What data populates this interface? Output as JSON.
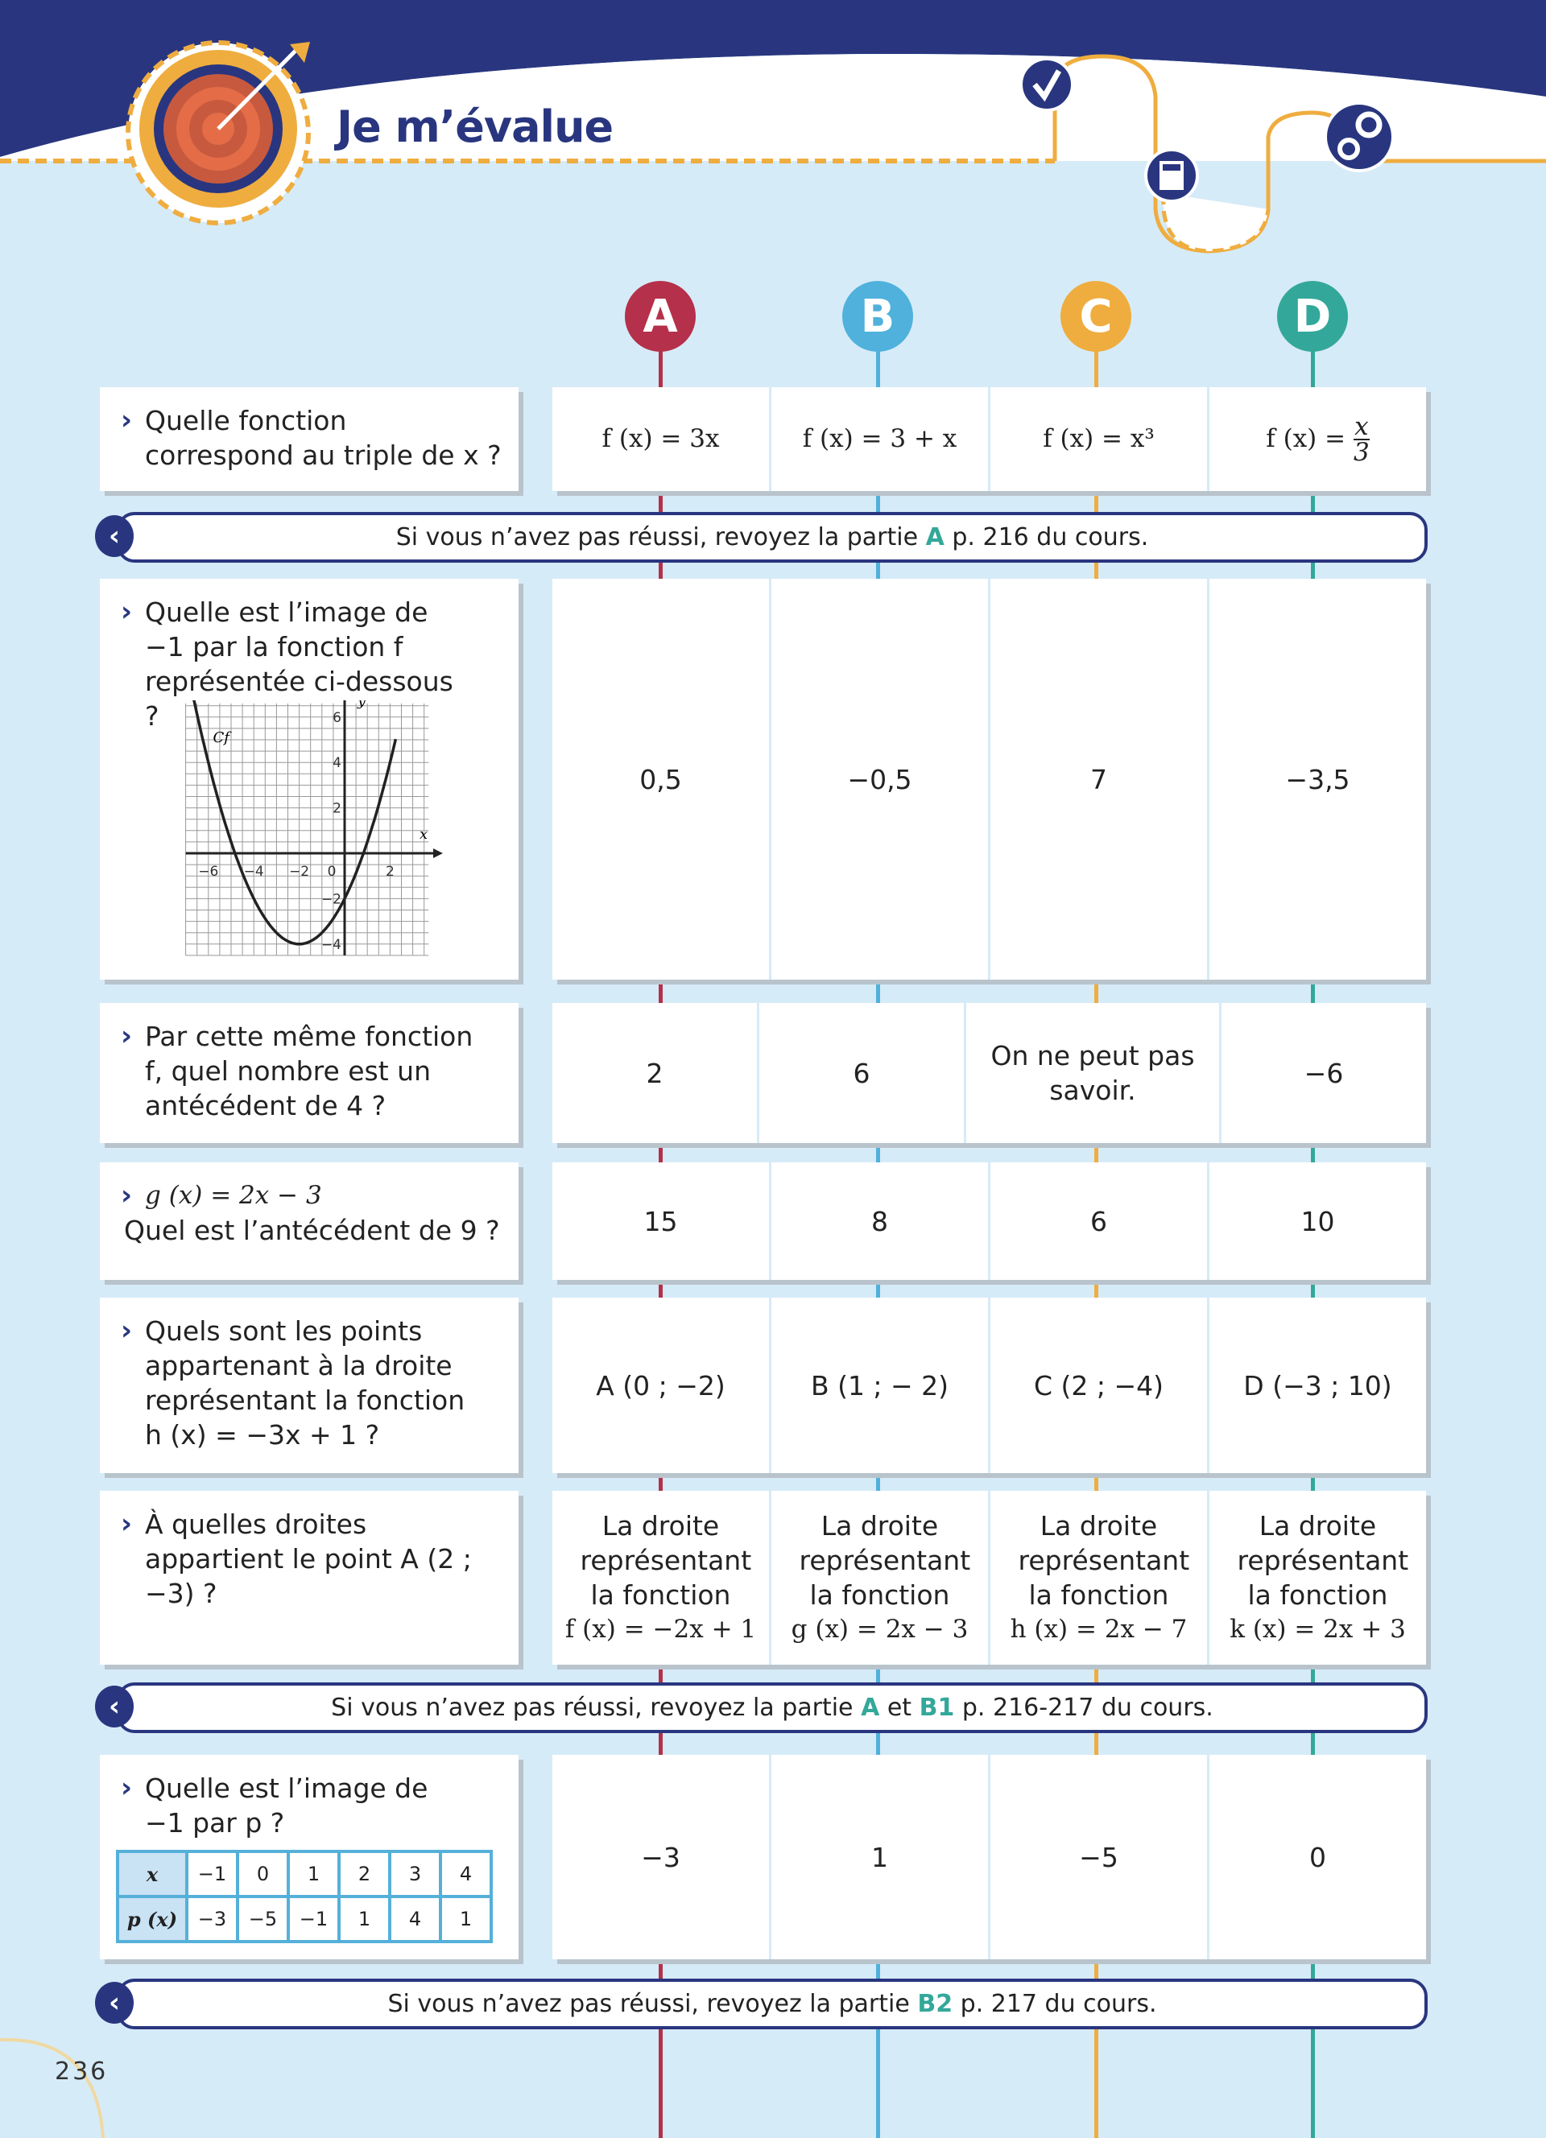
{
  "header": {
    "title": "Je m’évalue",
    "icons": [
      "target-icon",
      "checkmark-icon",
      "calculator-icon",
      "gears-icon"
    ]
  },
  "options": [
    "A",
    "B",
    "C",
    "D"
  ],
  "colors": {
    "A": "#b5304a",
    "B": "#4fb1dc",
    "C": "#efad3f",
    "D": "#33a89a",
    "navy": "#29367f"
  },
  "questions": [
    {
      "text": "Quelle fonction correspond au triple de x ?",
      "answers": [
        "f (x) = 3x",
        "f (x) = 3 + x",
        "f (x) = x³"
      ],
      "answer_d": {
        "prefix": "f (x) = ",
        "num": "x",
        "den": "3"
      }
    },
    {
      "text": "Quelle est l’image de −1 par la fonction f représentée ci-dessous ?",
      "answers": [
        "0,5",
        "−0,5",
        "7",
        "−3,5"
      ],
      "graph": {
        "curve_label": "Cf",
        "x_label": "x",
        "y_label": "y",
        "x_ticks": [
          "−6",
          "−4",
          "−2",
          "0",
          "2"
        ],
        "y_ticks": [
          "6",
          "4",
          "2",
          "−2",
          "−4"
        ]
      }
    },
    {
      "text": "Par cette même fonction f, quel nombre est un antécédent de 4 ?",
      "answers": [
        "2",
        "6",
        "On ne peut pas savoir.",
        "−6"
      ]
    },
    {
      "text_line1": "g (x) = 2x − 3",
      "text_line2": "Quel est l’antécédent de 9 ?",
      "answers": [
        "15",
        "8",
        "6",
        "10"
      ]
    },
    {
      "text": "Quels sont les points appartenant à la droite représentant la fonction h (x) = −3x + 1 ?",
      "answers": [
        "A (0 ; −2)",
        "B (1 ; − 2)",
        "C (2 ; −4)",
        "D (−3 ; 10)"
      ]
    },
    {
      "text": "À quelles droites appartient le point A (2 ; −3) ?",
      "answers_prefix": "La droite représentant la fonction",
      "answers": [
        "f (x) = −2x + 1",
        "g (x) = 2x − 3",
        "h (x) = 2x − 7",
        "k (x) = 2x + 3"
      ]
    },
    {
      "text": "Quelle est l’image de −1 par p ?",
      "table": {
        "row1_head": "x",
        "row1": [
          "−1",
          "0",
          "1",
          "2",
          "3",
          "4"
        ],
        "row2_head": "p (x)",
        "row2": [
          "−3",
          "−5",
          "−1",
          "1",
          "4",
          "1"
        ]
      },
      "answers": [
        "−3",
        "1",
        "−5",
        "0"
      ]
    }
  ],
  "banners": [
    {
      "pre": "Si vous n’avez pas réussi, revoyez la partie ",
      "h1": "A",
      "mid": "",
      "h2": "",
      "post": " p. 216 du cours."
    },
    {
      "pre": "Si vous n’avez pas réussi, revoyez la partie ",
      "h1": "A",
      "mid": " et ",
      "h2": "B1",
      "post": " p. 216-217 du cours."
    },
    {
      "pre": "Si vous n’avez pas réussi, revoyez la partie ",
      "h1": "B2",
      "mid": "",
      "h2": "",
      "post": " p. 217 du cours."
    }
  ],
  "page_number": "236"
}
